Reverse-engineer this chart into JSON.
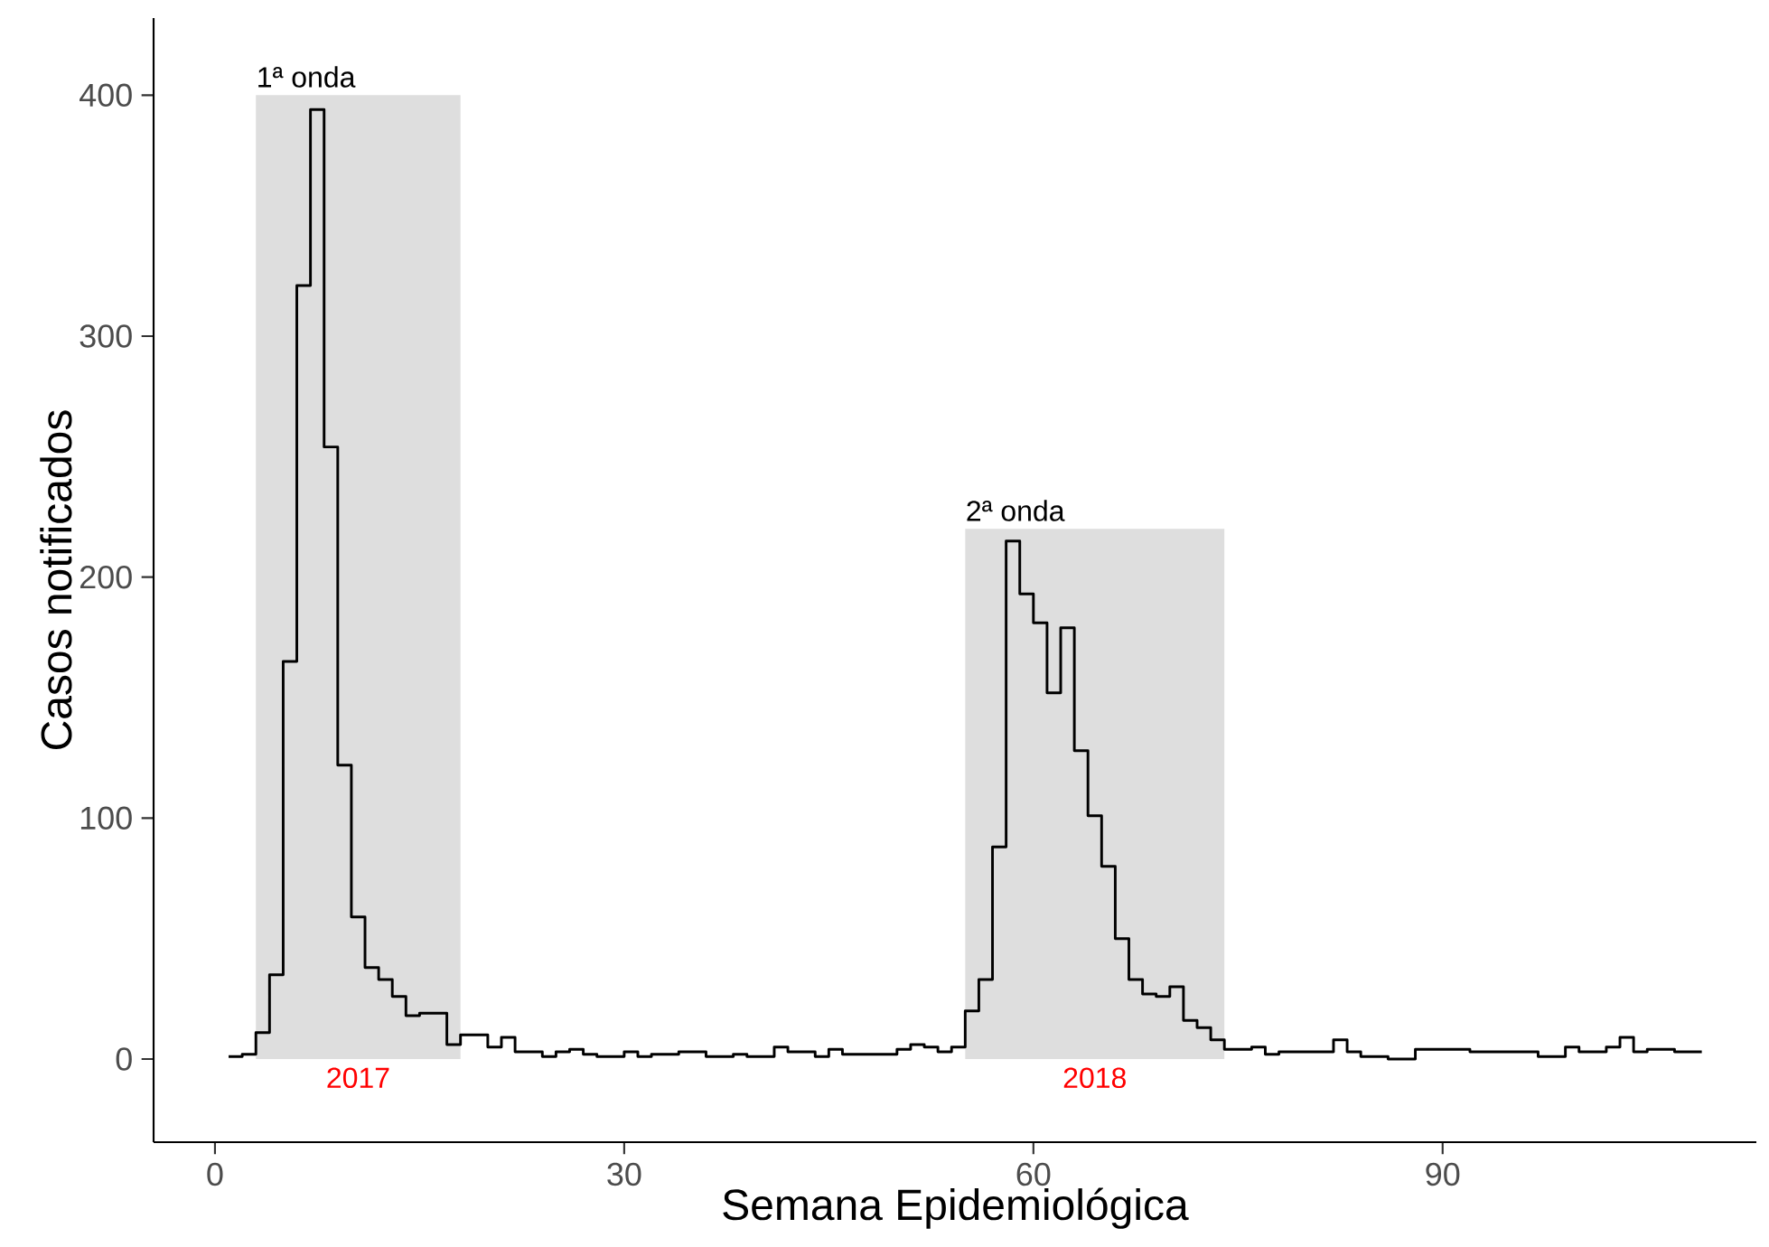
{
  "chart_data": {
    "type": "step",
    "xlabel": "Semana Epidemiológica",
    "ylabel": "Casos notificados",
    "x": [
      1,
      2,
      3,
      4,
      5,
      6,
      7,
      8,
      9,
      10,
      11,
      12,
      13,
      14,
      15,
      16,
      17,
      18,
      19,
      20,
      21,
      22,
      23,
      24,
      25,
      26,
      27,
      28,
      29,
      30,
      31,
      32,
      33,
      34,
      35,
      36,
      37,
      38,
      39,
      40,
      41,
      42,
      43,
      44,
      45,
      46,
      47,
      48,
      49,
      50,
      51,
      52,
      53,
      54,
      55,
      56,
      57,
      58,
      59,
      60,
      61,
      62,
      63,
      64,
      65,
      66,
      67,
      68,
      69,
      70,
      71,
      72,
      73,
      74,
      75,
      76,
      77,
      78,
      79,
      80,
      81,
      82,
      83,
      84,
      85,
      86,
      87,
      88,
      89,
      90,
      91,
      92,
      93,
      94,
      95,
      96,
      97,
      98,
      99,
      100,
      101,
      102,
      103,
      104,
      105,
      106,
      107,
      108,
      109
    ],
    "series": [
      {
        "color": "#000000",
        "values": [
          1,
          2,
          11,
          35,
          165,
          321,
          394,
          254,
          122,
          59,
          38,
          33,
          26,
          18,
          19,
          19,
          6,
          10,
          10,
          5,
          9,
          3,
          3,
          1,
          3,
          4,
          2,
          1,
          1,
          3,
          1,
          2,
          2,
          3,
          3,
          1,
          1,
          2,
          1,
          1,
          5,
          3,
          3,
          1,
          4,
          2,
          2,
          2,
          2,
          4,
          6,
          5,
          3,
          5,
          20,
          33,
          88,
          215,
          193,
          181,
          152,
          179,
          128,
          101,
          80,
          50,
          33,
          27,
          26,
          30,
          16,
          13,
          8,
          4,
          4,
          5,
          2,
          3,
          3,
          3,
          3,
          8,
          3,
          1,
          1,
          0,
          0,
          4,
          4,
          4,
          4,
          3,
          3,
          3,
          3,
          3,
          1,
          1,
          5,
          3,
          3,
          5,
          9,
          3,
          4,
          4,
          3,
          3,
          3
        ]
      }
    ],
    "xlim": [
      -4.5,
      113
    ],
    "ylim": [
      -34.5,
      432
    ],
    "xticks": [
      0,
      30,
      60,
      90
    ],
    "yticks": [
      0,
      100,
      200,
      300,
      400
    ],
    "bands": [
      {
        "axis": "x",
        "from": 3,
        "to": 18,
        "label": "2017",
        "color": "#dedede"
      },
      {
        "axis": "x",
        "from": 55,
        "to": 74,
        "label": "2018",
        "color": "#dedede"
      }
    ],
    "annotations": [
      {
        "text": "1ª onda",
        "x": 3,
        "y": 400
      },
      {
        "text": "2ª onda",
        "x": 55,
        "y": 220
      }
    ]
  }
}
